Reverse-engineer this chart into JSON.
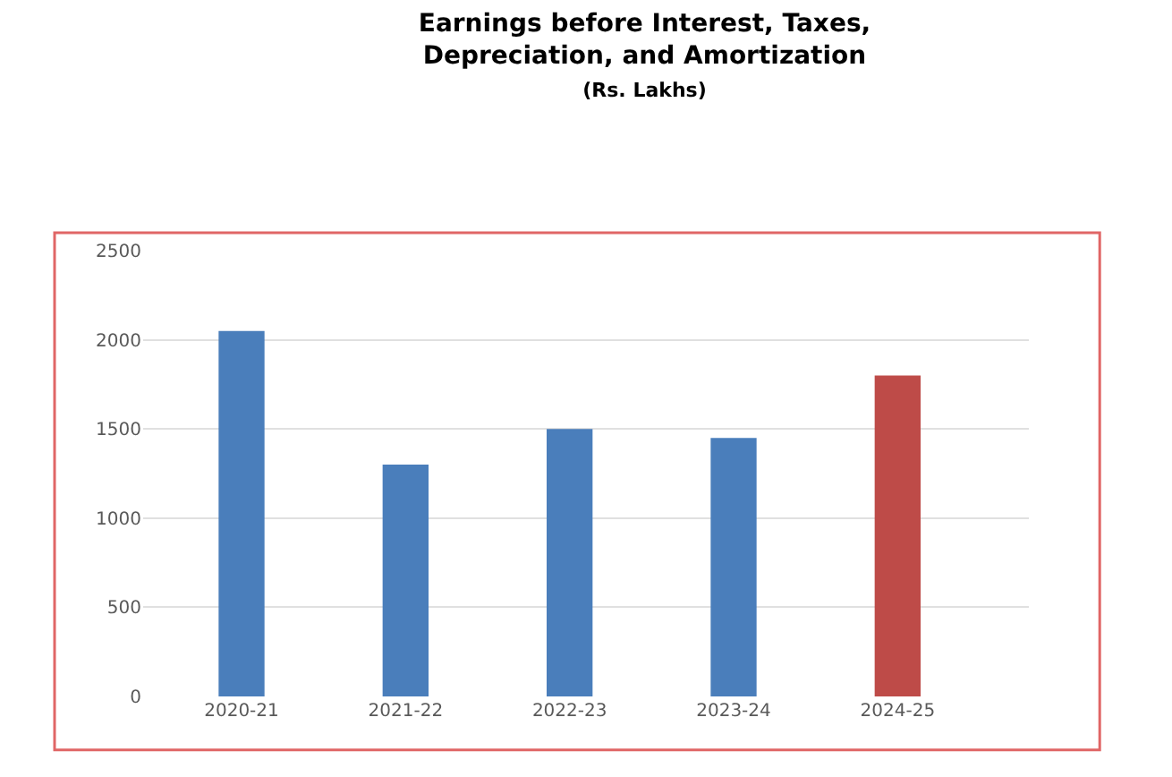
{
  "chart_data": {
    "type": "bar",
    "title": "Earnings before Interest, Taxes, Depreciation, and Amortization",
    "subtitle": "(Rs. Lakhs)",
    "categories": [
      "2020-21",
      "2021-22",
      "2022-23",
      "2023-24",
      "2024-25"
    ],
    "values": [
      2050,
      1300,
      1500,
      1450,
      1800
    ],
    "colors": [
      "#4a7ebb",
      "#4a7ebb",
      "#4a7ebb",
      "#4a7ebb",
      "#be4b48"
    ],
    "ylim": [
      0,
      2500
    ],
    "yticks": [
      0,
      500,
      1000,
      1500,
      2000,
      2500
    ],
    "grid": "y"
  }
}
